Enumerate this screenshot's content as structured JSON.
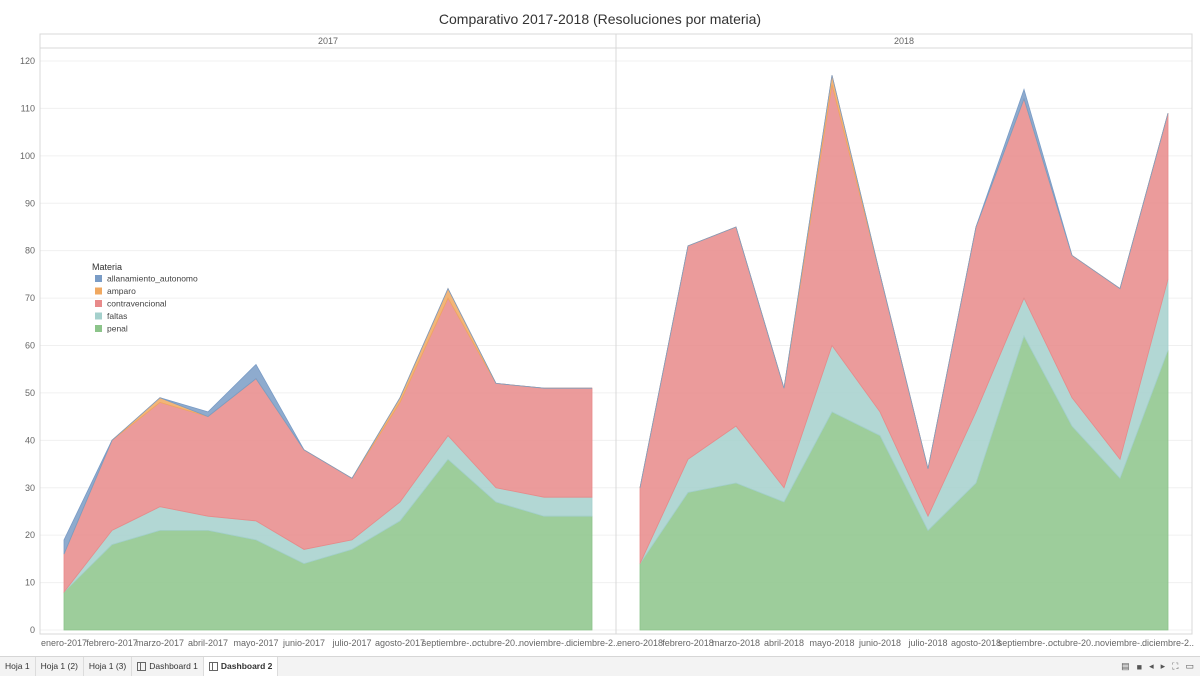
{
  "title": "Comparativo 2017-2018 (Resoluciones por materia)",
  "legend": {
    "title": "Materia",
    "items": [
      {
        "name": "allanamiento_autonomo",
        "color": "#7a9cc6"
      },
      {
        "name": "amparo",
        "color": "#f0a860"
      },
      {
        "name": "contravencional",
        "color": "#e88a8a"
      },
      {
        "name": "faltas",
        "color": "#a4d0cc"
      },
      {
        "name": "penal",
        "color": "#8cc48a"
      }
    ]
  },
  "tabs": [
    "Hoja 1",
    "Hoja 1 (2)",
    "Hoja 1 (3)",
    "Dashboard 1",
    "Dashboard 2"
  ],
  "active_tab": "Dashboard 2",
  "chart_data": [
    {
      "type": "area",
      "stacked": true,
      "panel": "2017",
      "categories": [
        "enero-2017",
        "febrero-2017",
        "marzo-2017",
        "abril-2017",
        "mayo-2017",
        "junio-2017",
        "julio-2017",
        "agosto-2017",
        "septiembre-..",
        "octubre-20..",
        "noviembre-..",
        "diciembre-2.."
      ],
      "series": [
        {
          "name": "penal",
          "values": [
            8,
            18,
            21,
            21,
            19,
            14,
            17,
            23,
            36,
            27,
            24,
            24
          ]
        },
        {
          "name": "faltas",
          "values": [
            0,
            3,
            5,
            3,
            4,
            3,
            2,
            4,
            5,
            3,
            4,
            4
          ]
        },
        {
          "name": "contravencional",
          "values": [
            8,
            19,
            22,
            21,
            30,
            21,
            13,
            21,
            29,
            22,
            23,
            23
          ]
        },
        {
          "name": "amparo",
          "values": [
            0,
            0,
            1,
            0,
            0,
            0,
            0,
            1,
            2,
            0,
            0,
            0
          ]
        },
        {
          "name": "allanamiento_autonomo",
          "values": [
            3,
            0,
            0,
            1,
            3,
            0,
            0,
            0,
            0,
            0,
            0,
            0
          ]
        }
      ],
      "ylim": [
        0,
        120
      ],
      "yticks": [
        0,
        10,
        20,
        30,
        40,
        50,
        60,
        70,
        80,
        90,
        100,
        110,
        120
      ]
    },
    {
      "type": "area",
      "stacked": true,
      "panel": "2018",
      "categories": [
        "enero-2018",
        "febrero-2018",
        "marzo-2018",
        "abril-2018",
        "mayo-2018",
        "junio-2018",
        "julio-2018",
        "agosto-2018",
        "septiembre-..",
        "octubre-20..",
        "noviembre-..",
        "diciembre-2.."
      ],
      "series": [
        {
          "name": "penal",
          "values": [
            14,
            29,
            31,
            27,
            46,
            41,
            21,
            31,
            62,
            43,
            32,
            59
          ]
        },
        {
          "name": "faltas",
          "values": [
            0,
            7,
            12,
            3,
            14,
            5,
            3,
            15,
            8,
            6,
            4,
            15
          ]
        },
        {
          "name": "contravencional",
          "values": [
            16,
            45,
            42,
            21,
            55,
            29,
            10,
            39,
            42,
            30,
            36,
            35
          ]
        },
        {
          "name": "amparo",
          "values": [
            0,
            0,
            0,
            0,
            2,
            0,
            0,
            0,
            0,
            0,
            0,
            0
          ]
        },
        {
          "name": "allanamiento_autonomo",
          "values": [
            0,
            0,
            0,
            0,
            0,
            0,
            0,
            0,
            2,
            0,
            0,
            0
          ]
        }
      ],
      "ylim": [
        0,
        120
      ],
      "yticks": [
        0,
        10,
        20,
        30,
        40,
        50,
        60,
        70,
        80,
        90,
        100,
        110,
        120
      ]
    }
  ]
}
